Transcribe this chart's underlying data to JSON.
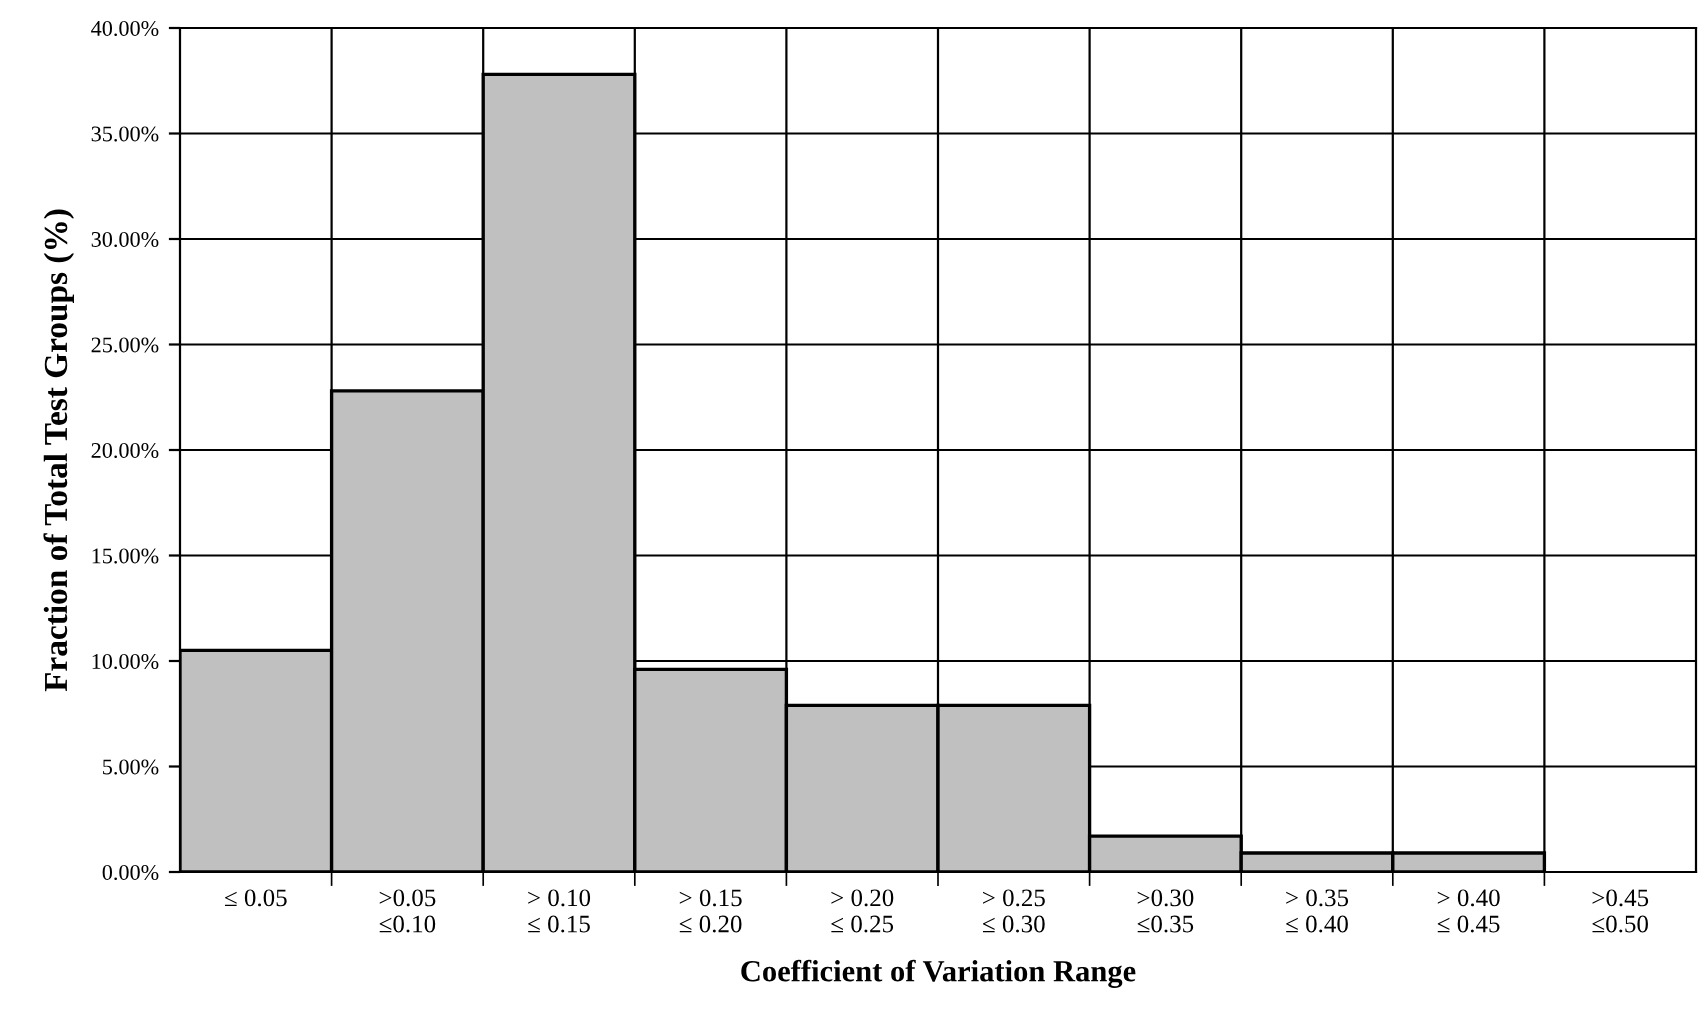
{
  "chart_data": {
    "type": "bar",
    "categories": [
      "≤ 0.05",
      ">0.05\n≤0.10",
      "> 0.10\n≤ 0.15",
      "> 0.15\n≤ 0.20",
      "> 0.20\n≤ 0.25",
      "> 0.25\n≤ 0.30",
      ">0.30\n≤0.35",
      "> 0.35\n≤ 0.40",
      "> 0.40\n≤ 0.45",
      ">0.45\n≤0.50"
    ],
    "values": [
      10.5,
      22.8,
      37.8,
      9.6,
      7.9,
      7.9,
      1.7,
      0.9,
      0.9,
      0
    ],
    "color": "#c0c0c0",
    "xlabel": "Coefficient of Variation Range",
    "ylabel": "Fraction of Total Test Groups (%)",
    "ylim": [
      0,
      40
    ],
    "yticks": [
      {
        "value": 0,
        "label": "0.00%"
      },
      {
        "value": 5,
        "label": "5.00%"
      },
      {
        "value": 10,
        "label": "10.00%"
      },
      {
        "value": 15,
        "label": "15.00%"
      },
      {
        "value": 20,
        "label": "20.00%"
      },
      {
        "value": 25,
        "label": "25.00%"
      },
      {
        "value": 30,
        "label": "30.00%"
      },
      {
        "value": 35,
        "label": "35.00%"
      },
      {
        "value": 40,
        "label": "40.00%"
      }
    ],
    "grid": true
  }
}
